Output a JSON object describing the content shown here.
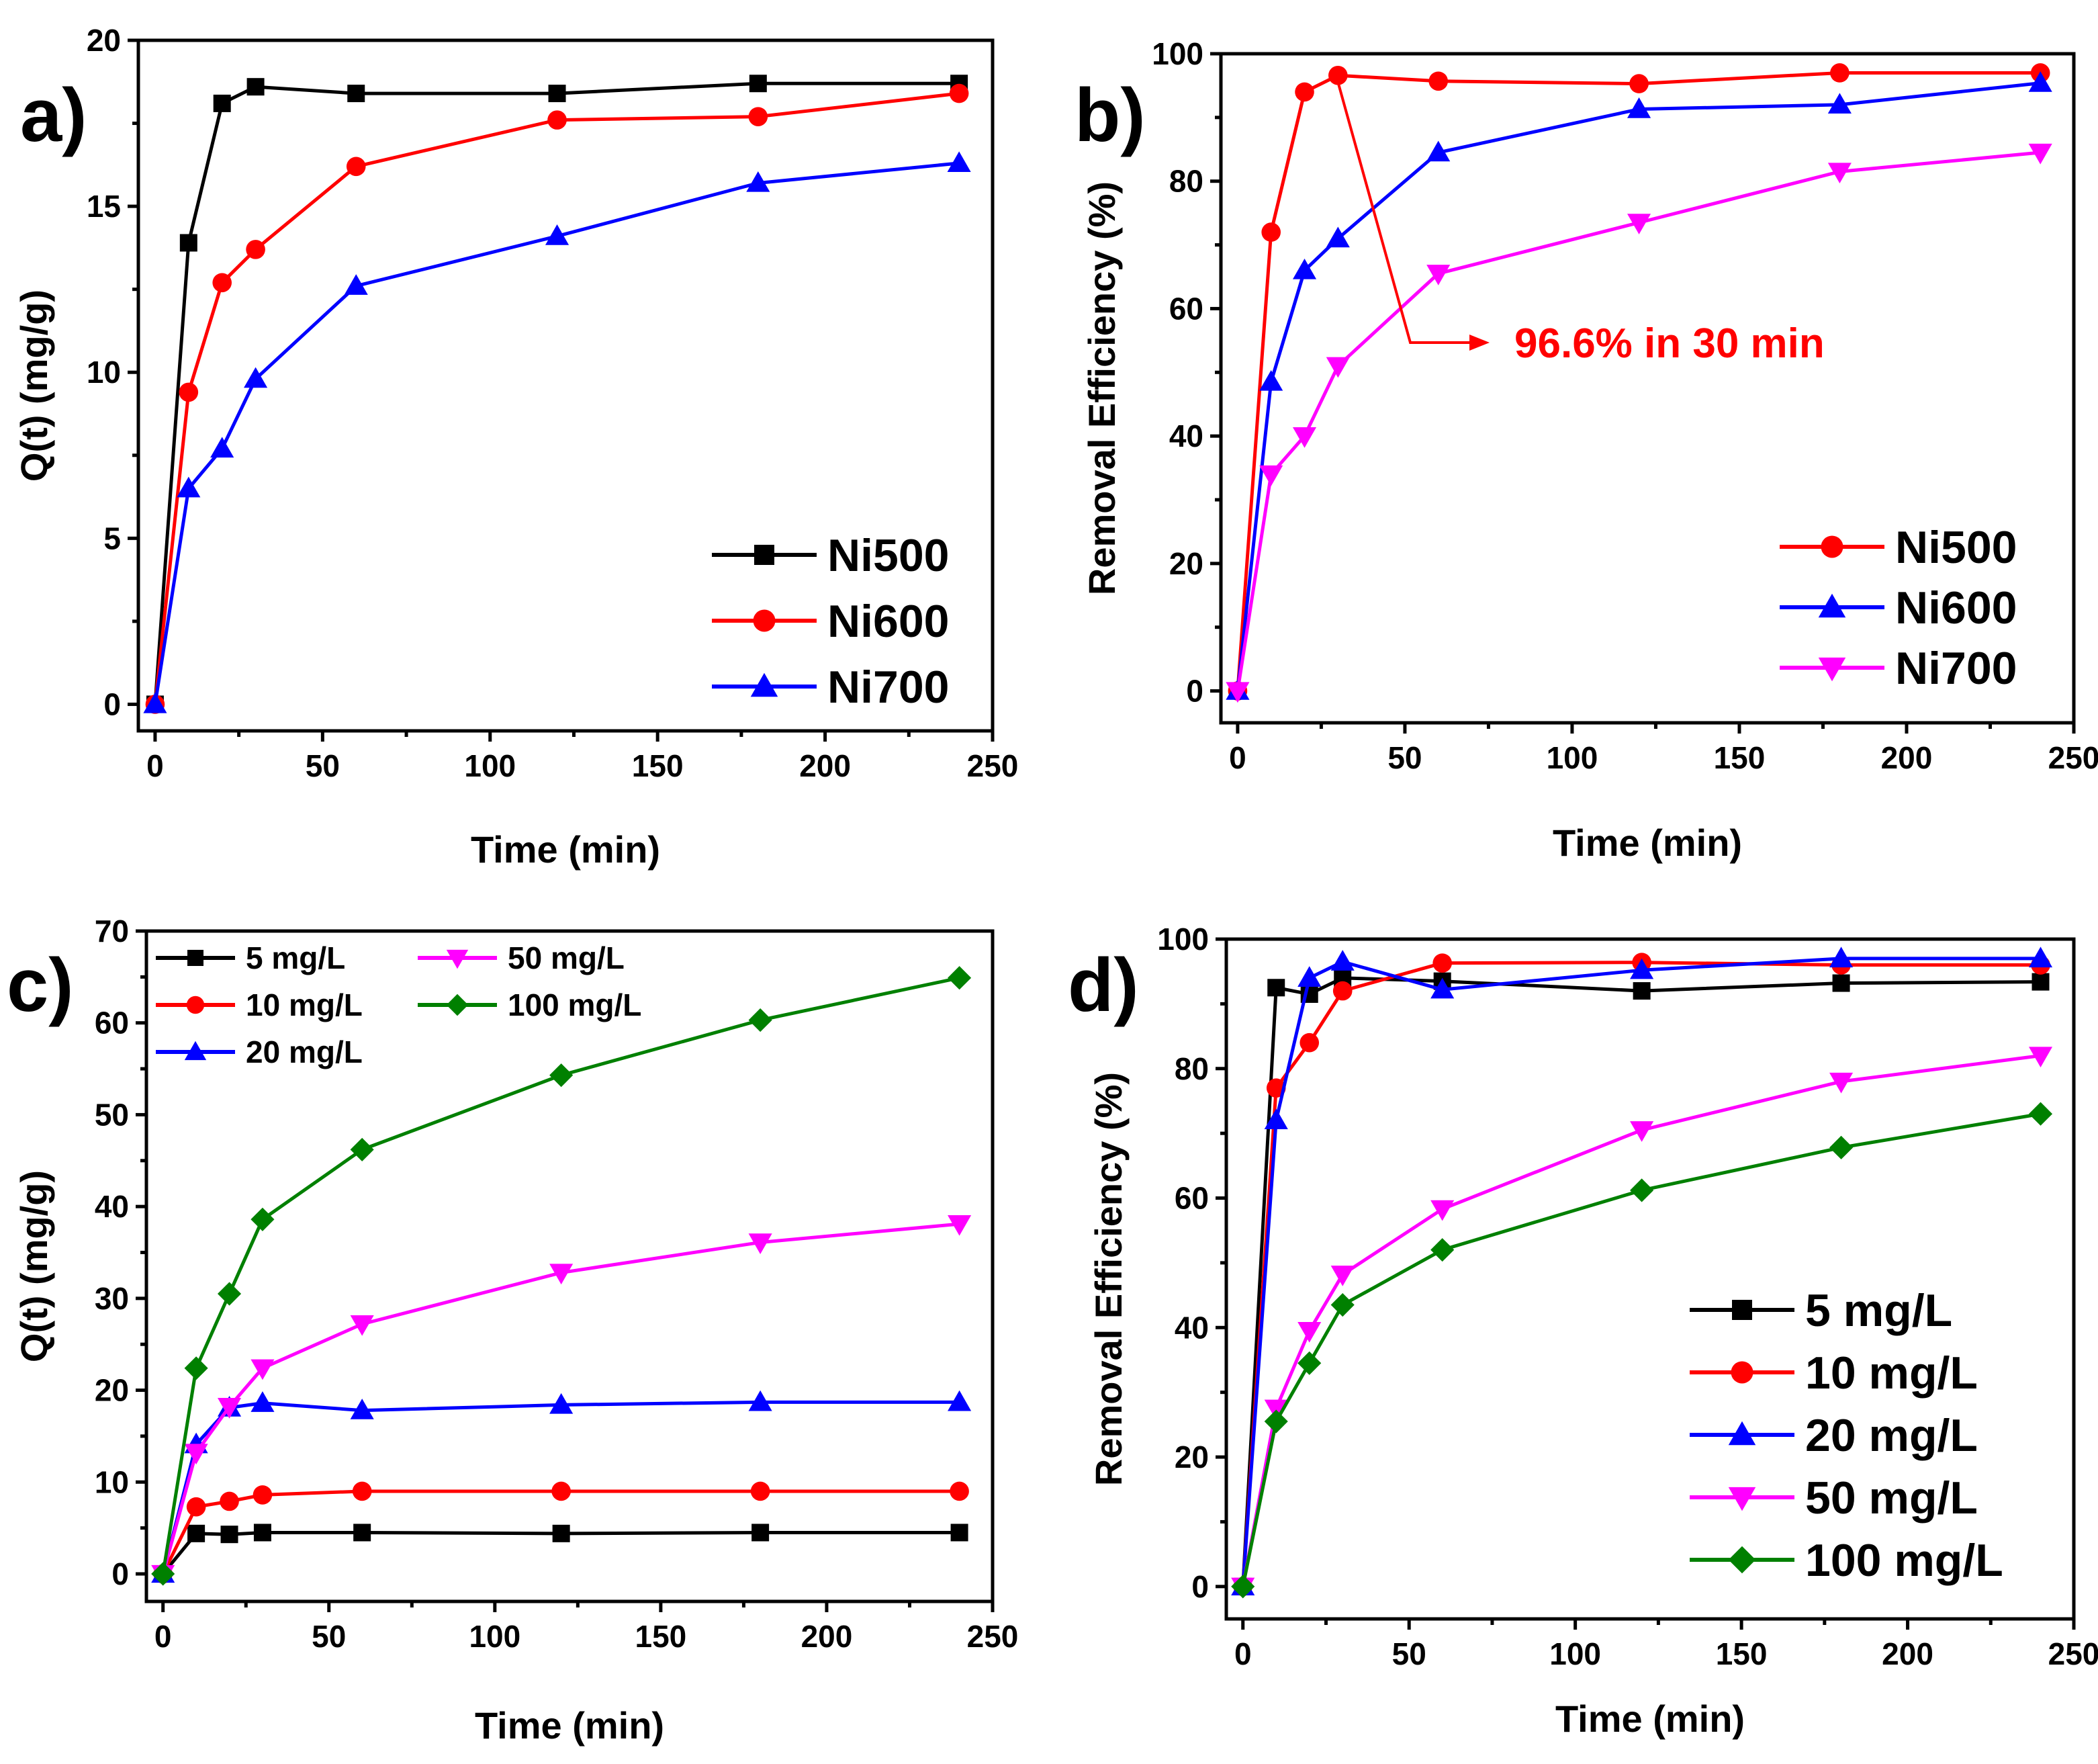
{
  "colors": {
    "black": "#000000",
    "red": "#ff0000",
    "blue": "#0000ff",
    "magenta": "#ff00ff",
    "green": "#008000"
  },
  "chart_data": [
    {
      "id": "a",
      "panel_label": "a)",
      "type": "line",
      "xlabel": "Time (min)",
      "ylabel": "Q(t) (mg/g)",
      "xlim": [
        -5,
        250
      ],
      "ylim": [
        -0.8,
        20
      ],
      "xticks": [
        0,
        50,
        100,
        150,
        200,
        250
      ],
      "yticks": [
        0,
        5,
        10,
        15,
        20
      ],
      "legend_position": "bottom-right",
      "x": [
        0,
        10,
        20,
        30,
        60,
        120,
        180,
        240
      ],
      "series": [
        {
          "name": "Ni500",
          "color": "#000000",
          "marker": "square",
          "values": [
            0,
            13.9,
            18.1,
            18.6,
            18.4,
            18.4,
            18.7,
            18.7
          ]
        },
        {
          "name": "Ni600",
          "color": "#ff0000",
          "marker": "circle",
          "values": [
            0,
            9.4,
            12.7,
            13.7,
            16.2,
            17.6,
            17.7,
            18.4
          ]
        },
        {
          "name": "Ni700",
          "color": "#0000ff",
          "marker": "triangle-up",
          "values": [
            0,
            6.5,
            7.7,
            9.8,
            12.6,
            14.1,
            15.7,
            16.3
          ]
        }
      ]
    },
    {
      "id": "b",
      "panel_label": "b)",
      "type": "line",
      "xlabel": "Time (min)",
      "ylabel": "Removal Efficiency (%)",
      "xlim": [
        -5,
        250
      ],
      "ylim": [
        -5,
        100
      ],
      "xticks": [
        0,
        50,
        100,
        150,
        200,
        250
      ],
      "yticks": [
        0,
        20,
        40,
        60,
        80,
        100
      ],
      "legend_position": "bottom-right",
      "annotation": {
        "text": "96.6% in 30 min",
        "x": 30,
        "y": 96.6,
        "color": "#ff0000"
      },
      "x": [
        0,
        10,
        20,
        30,
        60,
        120,
        180,
        240
      ],
      "series": [
        {
          "name": "Ni500",
          "color": "#ff0000",
          "marker": "circle",
          "values": [
            0,
            72,
            94,
            96.6,
            95.7,
            95.3,
            97,
            97
          ]
        },
        {
          "name": "Ni600",
          "color": "#0000ff",
          "marker": "triangle-up",
          "values": [
            0,
            48.5,
            66,
            71,
            84.5,
            91.3,
            92,
            95.4
          ]
        },
        {
          "name": "Ni700",
          "color": "#ff00ff",
          "marker": "triangle-down",
          "values": [
            0,
            34,
            40,
            51,
            65.5,
            73.5,
            81.5,
            84.5
          ]
        }
      ]
    },
    {
      "id": "c",
      "panel_label": "c)",
      "type": "line",
      "xlabel": "Time (min)",
      "ylabel": "Q(t) (mg/g)",
      "xlim": [
        -5,
        250
      ],
      "ylim": [
        -3,
        70
      ],
      "xticks": [
        0,
        50,
        100,
        150,
        200,
        250
      ],
      "yticks": [
        0,
        10,
        20,
        30,
        40,
        50,
        60,
        70
      ],
      "legend_position": "top-left",
      "x": [
        0,
        10,
        20,
        30,
        60,
        120,
        180,
        240
      ],
      "series": [
        {
          "name": "5 mg/L",
          "color": "#000000",
          "marker": "square",
          "values": [
            0,
            4.4,
            4.3,
            4.5,
            4.5,
            4.4,
            4.5,
            4.5
          ]
        },
        {
          "name": "10 mg/L",
          "color": "#ff0000",
          "marker": "circle",
          "values": [
            0,
            7.3,
            7.9,
            8.6,
            9.0,
            9.0,
            9.0,
            9.0
          ]
        },
        {
          "name": "20 mg/L",
          "color": "#0000ff",
          "marker": "triangle-up",
          "values": [
            0,
            14.1,
            18.1,
            18.6,
            17.8,
            18.4,
            18.7,
            18.7
          ]
        },
        {
          "name": "50 mg/L",
          "color": "#ff00ff",
          "marker": "triangle-down",
          "values": [
            0,
            13.2,
            18.2,
            22.4,
            27.2,
            32.8,
            36.1,
            38.1
          ]
        },
        {
          "name": "100 mg/L",
          "color": "#008000",
          "marker": "diamond",
          "values": [
            0,
            22.4,
            30.5,
            38.6,
            46.2,
            54.3,
            60.3,
            64.9
          ]
        }
      ]
    },
    {
      "id": "d",
      "panel_label": "d)",
      "type": "line",
      "xlabel": "Time (min)",
      "ylabel": "Removal Efficiency (%)",
      "xlim": [
        -5,
        250
      ],
      "ylim": [
        -5,
        100
      ],
      "xticks": [
        0,
        50,
        100,
        150,
        200,
        250
      ],
      "yticks": [
        0,
        20,
        40,
        60,
        80,
        100
      ],
      "legend_position": "bottom-right",
      "x": [
        0,
        10,
        20,
        30,
        60,
        120,
        180,
        240
      ],
      "series": [
        {
          "name": "5 mg/L",
          "color": "#000000",
          "marker": "square",
          "values": [
            0,
            92.5,
            91.5,
            94,
            93.5,
            92,
            93.2,
            93.4
          ]
        },
        {
          "name": "10 mg/L",
          "color": "#ff0000",
          "marker": "circle",
          "values": [
            0,
            77,
            84,
            92,
            96.3,
            96.4,
            96,
            96
          ]
        },
        {
          "name": "20 mg/L",
          "color": "#0000ff",
          "marker": "triangle-up",
          "values": [
            0,
            72,
            94,
            96.5,
            92.2,
            95.2,
            97,
            97
          ]
        },
        {
          "name": "50 mg/L",
          "color": "#ff00ff",
          "marker": "triangle-down",
          "values": [
            0,
            27.5,
            39.5,
            48.2,
            58.3,
            70.5,
            78,
            82
          ]
        },
        {
          "name": "100 mg/L",
          "color": "#008000",
          "marker": "diamond",
          "values": [
            0,
            25.5,
            34.5,
            43.5,
            52,
            61.2,
            67.8,
            73
          ]
        }
      ]
    }
  ]
}
